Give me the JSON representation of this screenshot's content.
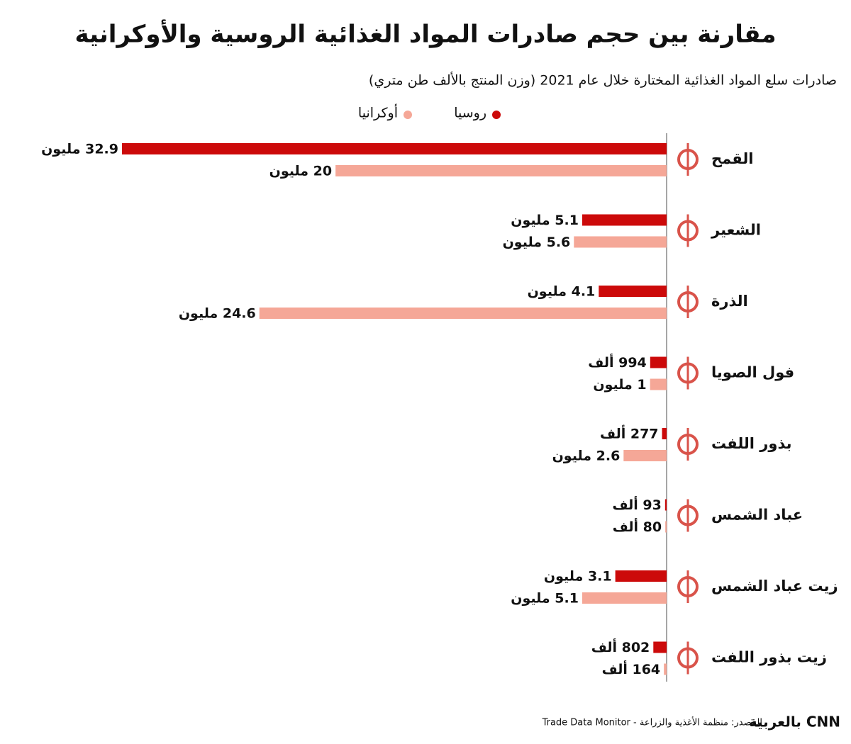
{
  "chart_data": {
    "type": "bar",
    "orientation": "horizontal",
    "title": "مقارنة بين حجم صادرات المواد الغذائية الروسية والأوكرانية",
    "subtitle": "صادرات سلع المواد الغذائية المختارة خلال عام 2021 (وزن المنتج بالألف طن متري)",
    "categories": [
      "القمح",
      "الشعير",
      "الذرة",
      "فول الصويا",
      "بذور اللفت",
      "عباد الشمس",
      "زيت عباد الشمس",
      "زيت بذور اللفت"
    ],
    "series": [
      {
        "name": "روسيا",
        "color": "#cc0a0a",
        "values": [
          32900,
          5100,
          4100,
          994,
          277,
          93,
          3100,
          802
        ],
        "value_labels": [
          "32.9 مليون",
          "5.1 مليون",
          "4.1 مليون",
          "994 ألف",
          "277 ألف",
          "93 ألف",
          "3.1 مليون",
          "802 ألف"
        ]
      },
      {
        "name": "أوكرانيا",
        "color": "#f5a797",
        "values": [
          20000,
          5600,
          24600,
          1000,
          2600,
          80,
          5100,
          164
        ],
        "value_labels": [
          "20 مليون",
          "5.6 مليون",
          "24.6 مليون",
          "1 مليون",
          "2.6 مليون",
          "80 ألف",
          "5.1 مليون",
          "164 ألف"
        ]
      }
    ],
    "source": "المصدر: منظمة الأغذية والزراعة - Trade Data Monitor",
    "brand": "CNN بالعربية"
  }
}
